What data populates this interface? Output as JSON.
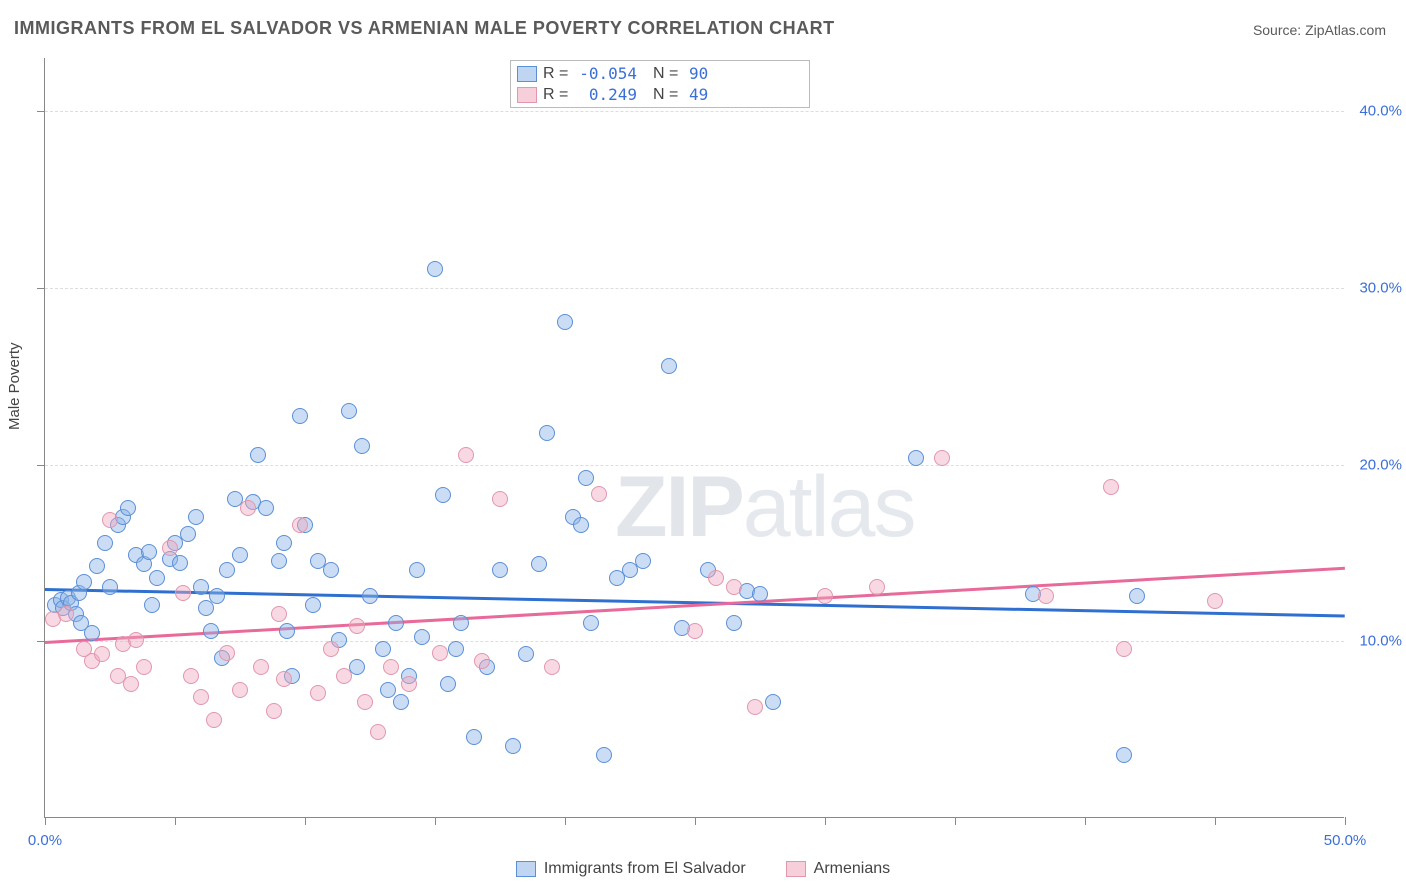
{
  "title": "IMMIGRANTS FROM EL SALVADOR VS ARMENIAN MALE POVERTY CORRELATION CHART",
  "source_label": "Source:",
  "source_value": "ZipAtlas.com",
  "ylabel": "Male Poverty",
  "watermark_a": "ZIP",
  "watermark_b": "atlas",
  "chart": {
    "type": "scatter",
    "xlim": [
      0,
      50
    ],
    "ylim": [
      0,
      43
    ],
    "x_ticks": [
      0,
      5,
      10,
      15,
      20,
      25,
      30,
      35,
      40,
      45,
      50
    ],
    "x_tick_labels": {
      "0": "0.0%",
      "50": "50.0%"
    },
    "y_ticks": [
      10,
      20,
      30,
      40
    ],
    "y_tick_labels": {
      "10": "10.0%",
      "20": "20.0%",
      "30": "30.0%",
      "40": "40.0%"
    },
    "grid_color": "#dddddd",
    "axis_color": "#888888",
    "label_color": "#3a6fd8",
    "background_color": "#ffffff",
    "marker_size": 16,
    "series": [
      {
        "name": "Immigrants from El Salvador",
        "color_fill": "rgba(140,179,230,0.45)",
        "color_stroke": "#5b8fd6",
        "R": "-0.054",
        "N": "90",
        "trend": {
          "x1": 0,
          "y1": 13.0,
          "x2": 50,
          "y2": 11.5,
          "color": "#2f6fd0"
        },
        "points": [
          [
            0.4,
            12.0
          ],
          [
            0.6,
            12.3
          ],
          [
            0.7,
            11.8
          ],
          [
            0.9,
            12.4
          ],
          [
            1.0,
            12.1
          ],
          [
            1.2,
            11.5
          ],
          [
            1.3,
            12.7
          ],
          [
            1.5,
            13.3
          ],
          [
            1.4,
            11.0
          ],
          [
            1.8,
            10.4
          ],
          [
            2.0,
            14.2
          ],
          [
            2.3,
            15.5
          ],
          [
            2.5,
            13.0
          ],
          [
            2.8,
            16.5
          ],
          [
            3.0,
            17.0
          ],
          [
            3.2,
            17.5
          ],
          [
            3.5,
            14.8
          ],
          [
            3.8,
            14.3
          ],
          [
            4.0,
            15.0
          ],
          [
            4.1,
            12.0
          ],
          [
            4.3,
            13.5
          ],
          [
            4.8,
            14.6
          ],
          [
            5.0,
            15.5
          ],
          [
            5.2,
            14.4
          ],
          [
            5.5,
            16.0
          ],
          [
            5.8,
            17.0
          ],
          [
            6.0,
            13.0
          ],
          [
            6.2,
            11.8
          ],
          [
            6.4,
            10.5
          ],
          [
            6.6,
            12.5
          ],
          [
            6.8,
            9.0
          ],
          [
            7.0,
            14.0
          ],
          [
            7.3,
            18.0
          ],
          [
            7.5,
            14.8
          ],
          [
            8.0,
            17.8
          ],
          [
            8.2,
            20.5
          ],
          [
            8.5,
            17.5
          ],
          [
            9.0,
            14.5
          ],
          [
            9.2,
            15.5
          ],
          [
            9.3,
            10.5
          ],
          [
            9.5,
            8.0
          ],
          [
            9.8,
            22.7
          ],
          [
            10.0,
            16.5
          ],
          [
            10.3,
            12.0
          ],
          [
            10.5,
            14.5
          ],
          [
            11.0,
            14.0
          ],
          [
            11.3,
            10.0
          ],
          [
            11.7,
            23.0
          ],
          [
            12.0,
            8.5
          ],
          [
            12.2,
            21.0
          ],
          [
            12.5,
            12.5
          ],
          [
            13.0,
            9.5
          ],
          [
            13.2,
            7.2
          ],
          [
            13.5,
            11.0
          ],
          [
            13.7,
            6.5
          ],
          [
            14.0,
            8.0
          ],
          [
            14.3,
            14.0
          ],
          [
            14.5,
            10.2
          ],
          [
            15.0,
            31.0
          ],
          [
            15.3,
            18.2
          ],
          [
            15.5,
            7.5
          ],
          [
            15.8,
            9.5
          ],
          [
            16.0,
            11.0
          ],
          [
            16.5,
            4.5
          ],
          [
            17.0,
            8.5
          ],
          [
            17.5,
            14.0
          ],
          [
            18.0,
            4.0
          ],
          [
            18.5,
            9.2
          ],
          [
            19.0,
            14.3
          ],
          [
            19.3,
            21.7
          ],
          [
            20.0,
            28.0
          ],
          [
            20.3,
            17.0
          ],
          [
            20.6,
            16.5
          ],
          [
            20.8,
            19.2
          ],
          [
            21.0,
            11.0
          ],
          [
            21.5,
            3.5
          ],
          [
            22.0,
            13.5
          ],
          [
            22.5,
            14.0
          ],
          [
            23.0,
            14.5
          ],
          [
            24.0,
            25.5
          ],
          [
            24.5,
            10.7
          ],
          [
            25.5,
            14.0
          ],
          [
            26.5,
            11.0
          ],
          [
            27.0,
            12.8
          ],
          [
            27.5,
            12.6
          ],
          [
            33.5,
            20.3
          ],
          [
            38.0,
            12.6
          ],
          [
            41.5,
            3.5
          ],
          [
            42.0,
            12.5
          ],
          [
            28.0,
            6.5
          ]
        ]
      },
      {
        "name": "Armenians",
        "color_fill": "rgba(240,168,190,0.45)",
        "color_stroke": "#e197ae",
        "R": "0.249",
        "N": "49",
        "trend": {
          "x1": 0,
          "y1": 10.0,
          "x2": 50,
          "y2": 14.2,
          "color": "#e86a9a"
        },
        "points": [
          [
            0.3,
            11.2
          ],
          [
            0.8,
            11.5
          ],
          [
            1.5,
            9.5
          ],
          [
            1.8,
            8.8
          ],
          [
            2.2,
            9.2
          ],
          [
            2.5,
            16.8
          ],
          [
            2.8,
            8.0
          ],
          [
            3.0,
            9.8
          ],
          [
            3.3,
            7.5
          ],
          [
            3.5,
            10.0
          ],
          [
            3.8,
            8.5
          ],
          [
            4.8,
            15.2
          ],
          [
            5.3,
            12.7
          ],
          [
            5.6,
            8.0
          ],
          [
            6.0,
            6.8
          ],
          [
            6.5,
            5.5
          ],
          [
            7.0,
            9.3
          ],
          [
            7.5,
            7.2
          ],
          [
            7.8,
            17.5
          ],
          [
            8.3,
            8.5
          ],
          [
            8.8,
            6.0
          ],
          [
            9.2,
            7.8
          ],
          [
            9.8,
            16.5
          ],
          [
            10.5,
            7.0
          ],
          [
            11.0,
            9.5
          ],
          [
            11.5,
            8.0
          ],
          [
            12.0,
            10.8
          ],
          [
            12.3,
            6.5
          ],
          [
            12.8,
            4.8
          ],
          [
            13.3,
            8.5
          ],
          [
            14.0,
            7.5
          ],
          [
            15.2,
            9.3
          ],
          [
            16.2,
            20.5
          ],
          [
            16.8,
            8.8
          ],
          [
            17.5,
            18.0
          ],
          [
            19.5,
            8.5
          ],
          [
            21.3,
            18.3
          ],
          [
            25.0,
            10.5
          ],
          [
            25.8,
            13.5
          ],
          [
            26.5,
            13.0
          ],
          [
            27.3,
            6.2
          ],
          [
            30.0,
            12.5
          ],
          [
            32.0,
            13.0
          ],
          [
            34.5,
            20.3
          ],
          [
            38.5,
            12.5
          ],
          [
            41.0,
            18.7
          ],
          [
            41.5,
            9.5
          ],
          [
            45.0,
            12.2
          ],
          [
            9.0,
            11.5
          ]
        ]
      }
    ]
  },
  "bottom_legend": [
    {
      "swatch": "blue",
      "label": "Immigrants from El Salvador"
    },
    {
      "swatch": "pink",
      "label": "Armenians"
    }
  ]
}
